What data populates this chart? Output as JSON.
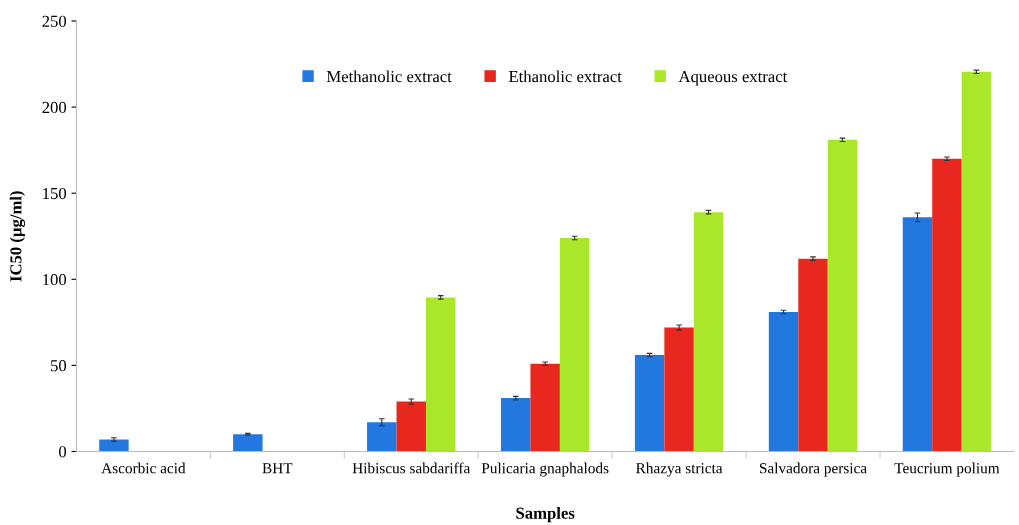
{
  "chart_data": {
    "type": "bar",
    "xlabel": "Samples",
    "ylabel": "IC50 (µg/ml)",
    "categories": [
      "Ascorbic acid",
      "BHT",
      "Hibiscus sabdariffa",
      "Pulicaria gnaphalods",
      "Rhazya stricta",
      "Salvadora persica",
      "Teucrium polium"
    ],
    "series": [
      {
        "name": "Methanolic extract",
        "color": "#2378e0",
        "values": [
          7,
          10,
          17,
          31,
          56,
          81,
          136
        ],
        "errors": [
          1,
          0.5,
          2,
          1,
          1,
          1,
          2.5
        ]
      },
      {
        "name": "Ethanolic extract",
        "color": "#e8281f",
        "values": [
          null,
          null,
          29,
          51,
          72,
          112,
          170
        ],
        "errors": [
          null,
          null,
          1.5,
          1,
          1.5,
          1,
          1
        ]
      },
      {
        "name": "Aqueous extract",
        "color": "#aae62a",
        "values": [
          null,
          null,
          89.5,
          124,
          139,
          181,
          220.5
        ],
        "errors": [
          null,
          null,
          1,
          1,
          1,
          1,
          1
        ]
      }
    ],
    "ylim": [
      0,
      250
    ],
    "yticks": [
      0,
      50,
      100,
      150,
      200,
      250
    ],
    "grid": false,
    "legend": "top"
  }
}
